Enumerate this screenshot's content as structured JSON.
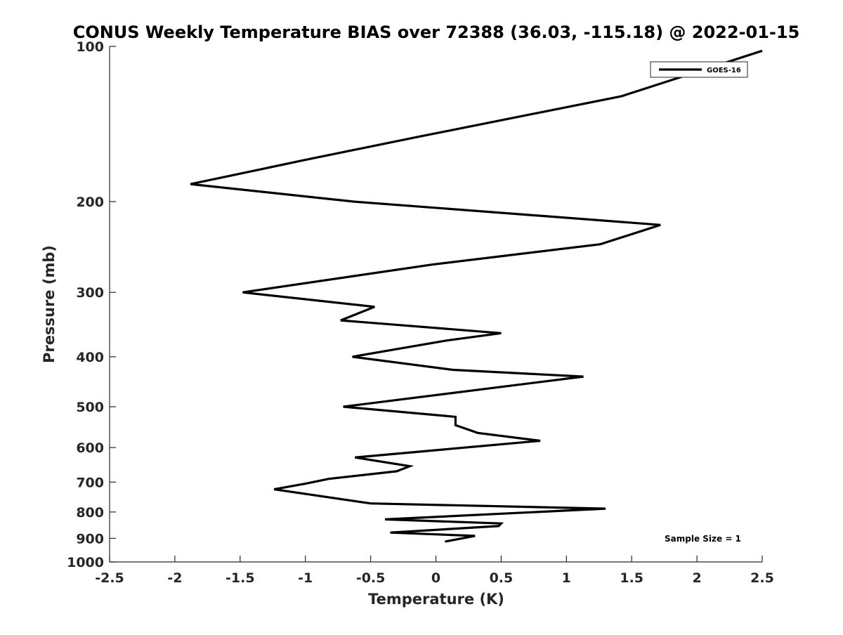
{
  "chart_data": {
    "type": "line",
    "title": "CONUS Weekly Temperature BIAS over 72388 (36.03, -115.18) @ 2022-01-15",
    "xlabel": "Temperature (K)",
    "ylabel": "Pressure (mb)",
    "xlim": [
      -2.5,
      2.5
    ],
    "ylim": [
      100,
      1000
    ],
    "y_scale": "log",
    "y_reversed": true,
    "grid": false,
    "legend_position": "top-right",
    "x_ticks": [
      {
        "value": -2.5,
        "label": "-2.5"
      },
      {
        "value": -2,
        "label": "-2"
      },
      {
        "value": -1.5,
        "label": "-1.5"
      },
      {
        "value": -1,
        "label": "-1"
      },
      {
        "value": -0.5,
        "label": "-0.5"
      },
      {
        "value": 0,
        "label": "0"
      },
      {
        "value": 0.5,
        "label": "0.5"
      },
      {
        "value": 1,
        "label": "1"
      },
      {
        "value": 1.5,
        "label": "1.5"
      },
      {
        "value": 2,
        "label": "2"
      },
      {
        "value": 2.5,
        "label": "2.5"
      }
    ],
    "y_ticks": [
      {
        "value": 100,
        "label": "100"
      },
      {
        "value": 200,
        "label": "200"
      },
      {
        "value": 300,
        "label": "300"
      },
      {
        "value": 400,
        "label": "400"
      },
      {
        "value": 500,
        "label": "500"
      },
      {
        "value": 600,
        "label": "600"
      },
      {
        "value": 700,
        "label": "700"
      },
      {
        "value": 800,
        "label": "800"
      },
      {
        "value": 900,
        "label": "900"
      },
      {
        "value": 1000,
        "label": "1000"
      }
    ],
    "series": [
      {
        "name": "GOES-16",
        "color": "#000000",
        "points": [
          {
            "x": 2.5,
            "y": 102
          },
          {
            "x": 1.42,
            "y": 125
          },
          {
            "x": -0.15,
            "y": 150
          },
          {
            "x": -1.0,
            "y": 166
          },
          {
            "x": -1.88,
            "y": 185
          },
          {
            "x": -0.63,
            "y": 200
          },
          {
            "x": 1.72,
            "y": 222
          },
          {
            "x": 1.26,
            "y": 242
          },
          {
            "x": -0.03,
            "y": 265
          },
          {
            "x": -1.48,
            "y": 300
          },
          {
            "x": -0.47,
            "y": 320
          },
          {
            "x": -0.73,
            "y": 340
          },
          {
            "x": 0.5,
            "y": 360
          },
          {
            "x": 0.08,
            "y": 372
          },
          {
            "x": -0.64,
            "y": 400
          },
          {
            "x": 0.13,
            "y": 424
          },
          {
            "x": 1.13,
            "y": 437
          },
          {
            "x": -0.71,
            "y": 500
          },
          {
            "x": 0.15,
            "y": 523
          },
          {
            "x": 0.15,
            "y": 543
          },
          {
            "x": 0.32,
            "y": 562
          },
          {
            "x": 0.8,
            "y": 582
          },
          {
            "x": -0.62,
            "y": 627
          },
          {
            "x": -0.2,
            "y": 652
          },
          {
            "x": -0.3,
            "y": 667
          },
          {
            "x": -0.82,
            "y": 690
          },
          {
            "x": -1.0,
            "y": 705
          },
          {
            "x": -1.24,
            "y": 723
          },
          {
            "x": -0.5,
            "y": 770
          },
          {
            "x": 1.3,
            "y": 788
          },
          {
            "x": -0.39,
            "y": 827
          },
          {
            "x": 0.5,
            "y": 842
          },
          {
            "x": 0.48,
            "y": 852
          },
          {
            "x": -0.35,
            "y": 877
          },
          {
            "x": 0.3,
            "y": 890
          },
          {
            "x": 0.07,
            "y": 913
          }
        ]
      }
    ],
    "legend": {
      "entries": [
        "GOES-16"
      ]
    },
    "annotations": [
      {
        "text": "Sample Size = 1"
      }
    ]
  }
}
